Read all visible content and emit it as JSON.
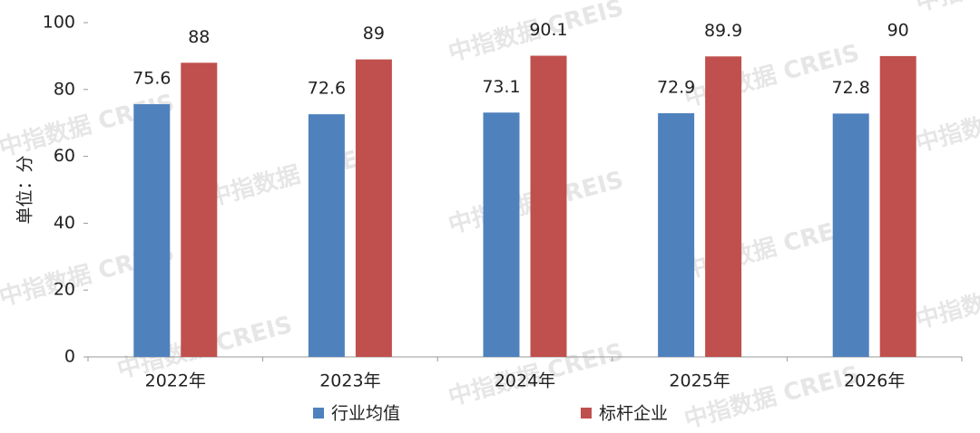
{
  "chart_data": {
    "type": "bar",
    "y_label": "单位：分",
    "watermark": "中指数据 CREIS",
    "categories": [
      "2022年",
      "2023年",
      "2024年",
      "2025年",
      "2026年"
    ],
    "series": [
      {
        "name": "行业均值",
        "color": "#4f81bd",
        "values": [
          75.6,
          72.6,
          73.1,
          72.9,
          72.8
        ]
      },
      {
        "name": "标杆企业",
        "color": "#c0504d",
        "values": [
          88,
          89,
          90.1,
          89.9,
          90
        ]
      }
    ],
    "ylim": [
      0,
      100
    ],
    "yticks": [
      0,
      20,
      40,
      60,
      80,
      100
    ],
    "grid": false,
    "legend": "bottom"
  }
}
